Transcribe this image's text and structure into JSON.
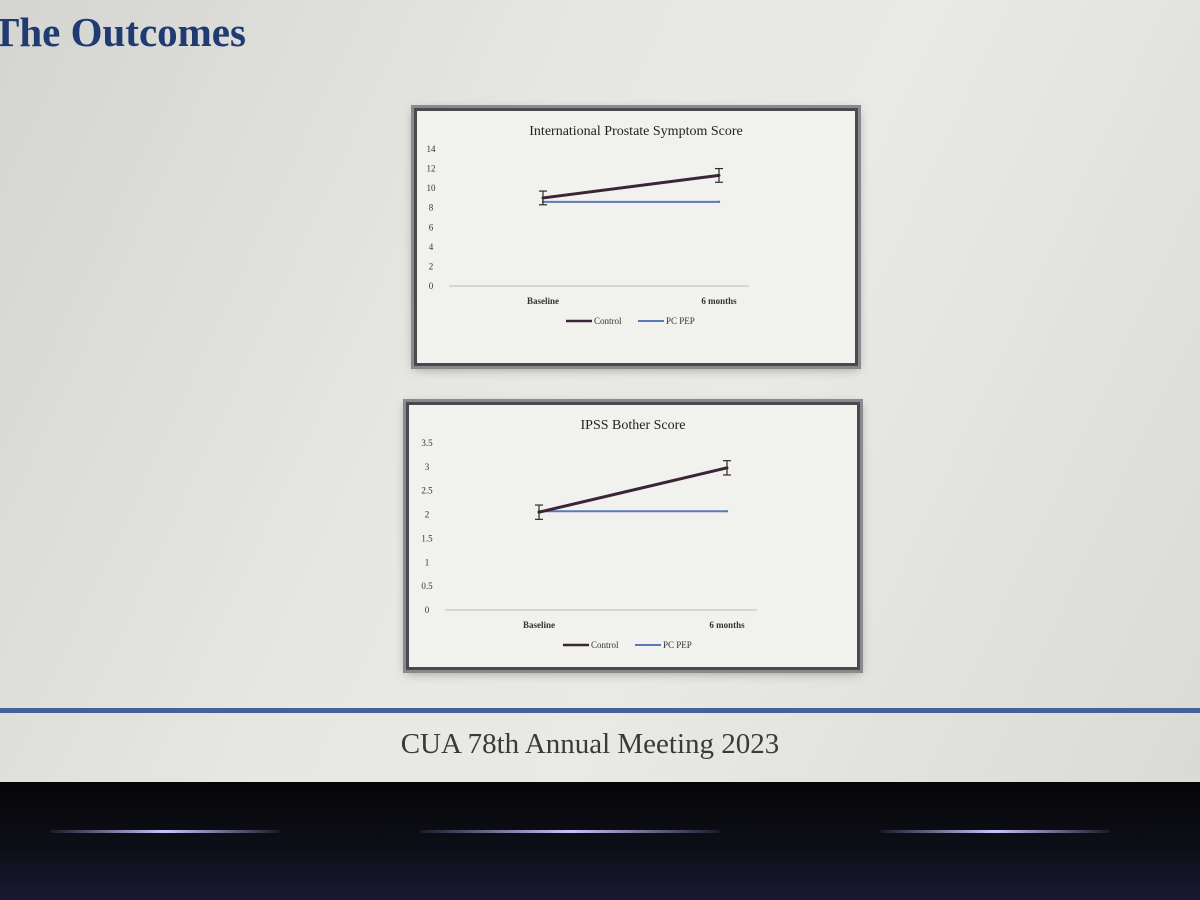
{
  "slide": {
    "title": "The Outcomes",
    "footer": "CUA 78th Annual Meeting 2023"
  },
  "colors": {
    "title": "#1f3b72",
    "divider": "#46609a",
    "control": "#3a2436",
    "pc_pep": "#5b79b8"
  },
  "chart_data": [
    {
      "type": "line",
      "title": "International Prostate Symptom Score",
      "categories": [
        "Baseline",
        "6 months"
      ],
      "yticks": [
        "0",
        "2",
        "4",
        "6",
        "8",
        "10",
        "12",
        "14"
      ],
      "ylim": [
        0,
        14
      ],
      "grid": false,
      "legend": "bottom",
      "series": [
        {
          "name": "Control",
          "values": [
            9.0,
            11.3
          ],
          "error": [
            0.7,
            0.7
          ]
        },
        {
          "name": "PC PEP",
          "values": [
            8.6,
            8.6
          ]
        }
      ]
    },
    {
      "type": "line",
      "title": "IPSS Bother Score",
      "categories": [
        "Baseline",
        "6 months"
      ],
      "yticks": [
        "0",
        "0.5",
        "1",
        "1.5",
        "2",
        "2.5",
        "3",
        "3.5"
      ],
      "ylim": [
        0,
        3.5
      ],
      "grid": false,
      "legend": "bottom",
      "series": [
        {
          "name": "Control",
          "values": [
            2.05,
            2.98
          ],
          "error": [
            0.15,
            0.15
          ]
        },
        {
          "name": "PC PEP",
          "values": [
            2.07,
            2.07
          ]
        }
      ]
    }
  ]
}
